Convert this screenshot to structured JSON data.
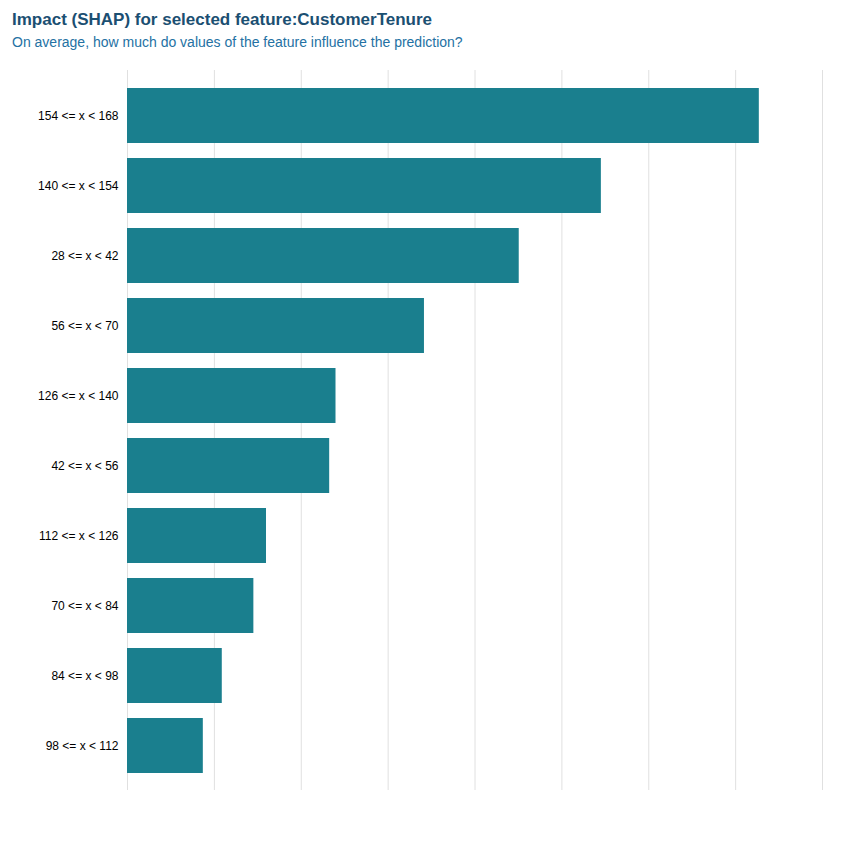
{
  "chart_data": {
    "type": "bar",
    "orientation": "horizontal",
    "title": "Impact (SHAP) for selected feature:CustomerTenure",
    "subtitle": "On average, how much do values of the feature influence the prediction?",
    "categories": [
      "154 <= x < 168",
      "140 <= x < 154",
      "28 <= x < 42",
      "56 <= x < 70",
      "126 <= x < 140",
      "42 <= x < 56",
      "112 <= x < 126",
      "70 <= x < 84",
      "84 <= x < 98",
      "98 <= x < 112"
    ],
    "values": [
      100,
      75,
      62,
      47,
      33,
      32,
      22,
      20,
      15,
      12
    ],
    "color": "#1a7f8e",
    "xlim": [
      0,
      110
    ],
    "xticks": [
      0,
      13.75,
      27.5,
      41.25,
      55,
      68.75,
      82.5,
      96.25,
      110
    ],
    "grid": true,
    "tick_labels": "y"
  }
}
